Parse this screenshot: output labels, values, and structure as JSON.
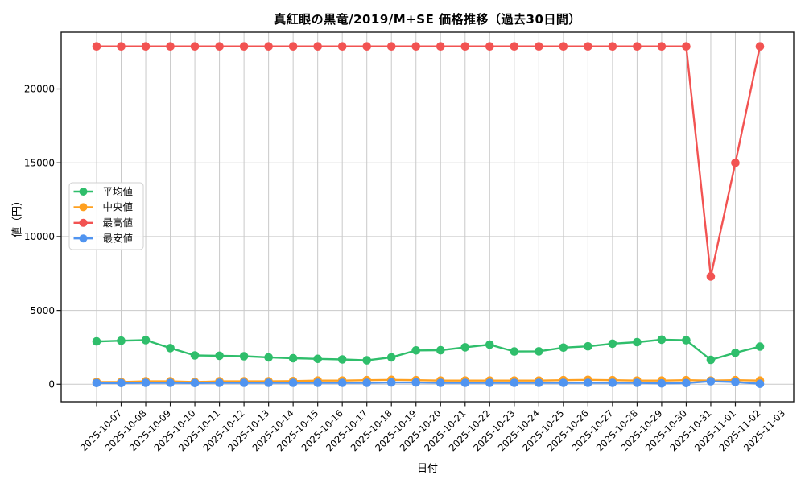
{
  "chart_data": {
    "type": "line",
    "title": "真紅眼の黒竜/2019/M+SE 価格推移（過去30日間）",
    "xlabel": "日付",
    "ylabel": "値（円）",
    "x": [
      "2025-10-07",
      "2025-10-08",
      "2025-10-09",
      "2025-10-10",
      "2025-10-11",
      "2025-10-12",
      "2025-10-13",
      "2025-10-14",
      "2025-10-15",
      "2025-10-16",
      "2025-10-17",
      "2025-10-18",
      "2025-10-19",
      "2025-10-20",
      "2025-10-21",
      "2025-10-22",
      "2025-10-23",
      "2025-10-24",
      "2025-10-25",
      "2025-10-26",
      "2025-10-27",
      "2025-10-28",
      "2025-10-29",
      "2025-10-30",
      "2025-10-31",
      "2025-11-01",
      "2025-11-02",
      "2025-11-03"
    ],
    "series": [
      {
        "id": "average",
        "name": "平均値",
        "color": "#2fbe6b",
        "values": [
          2900,
          2950,
          2990,
          2450,
          1950,
          1930,
          1900,
          1820,
          1760,
          1720,
          1680,
          1620,
          1820,
          2290,
          2300,
          2500,
          2680,
          2220,
          2230,
          2480,
          2570,
          2750,
          2850,
          3020,
          2980,
          1650,
          2130,
          2550
        ]
      },
      {
        "id": "median",
        "name": "中央値",
        "color": "#ffa01f",
        "values": [
          150,
          150,
          200,
          200,
          150,
          200,
          200,
          200,
          220,
          250,
          250,
          280,
          300,
          280,
          250,
          250,
          250,
          250,
          250,
          280,
          300,
          280,
          250,
          250,
          280,
          250,
          280,
          250
        ]
      },
      {
        "id": "max",
        "name": "最高値",
        "color": "#f25352",
        "values": [
          22880,
          22880,
          22880,
          22880,
          22880,
          22880,
          22880,
          22880,
          22880,
          22880,
          22880,
          22880,
          22880,
          22880,
          22880,
          22880,
          22880,
          22880,
          22880,
          22880,
          22880,
          22880,
          22880,
          22880,
          22880,
          7300,
          15000,
          22880
        ]
      },
      {
        "id": "min",
        "name": "最安値",
        "color": "#5094f0",
        "values": [
          80,
          80,
          100,
          100,
          80,
          100,
          100,
          100,
          100,
          100,
          100,
          100,
          120,
          120,
          100,
          100,
          100,
          100,
          100,
          100,
          100,
          100,
          100,
          60,
          80,
          200,
          150,
          30
        ]
      }
    ],
    "yticks": [
      0,
      5000,
      10000,
      15000,
      20000
    ],
    "ylim": [
      -1185,
      23850
    ],
    "grid": true,
    "legend_position": "center-left",
    "colors": {
      "grid": "#c9c9c9",
      "spine": "#1a1a1a",
      "legend_border": "#d0d0d0",
      "background": "#ffffff"
    }
  }
}
